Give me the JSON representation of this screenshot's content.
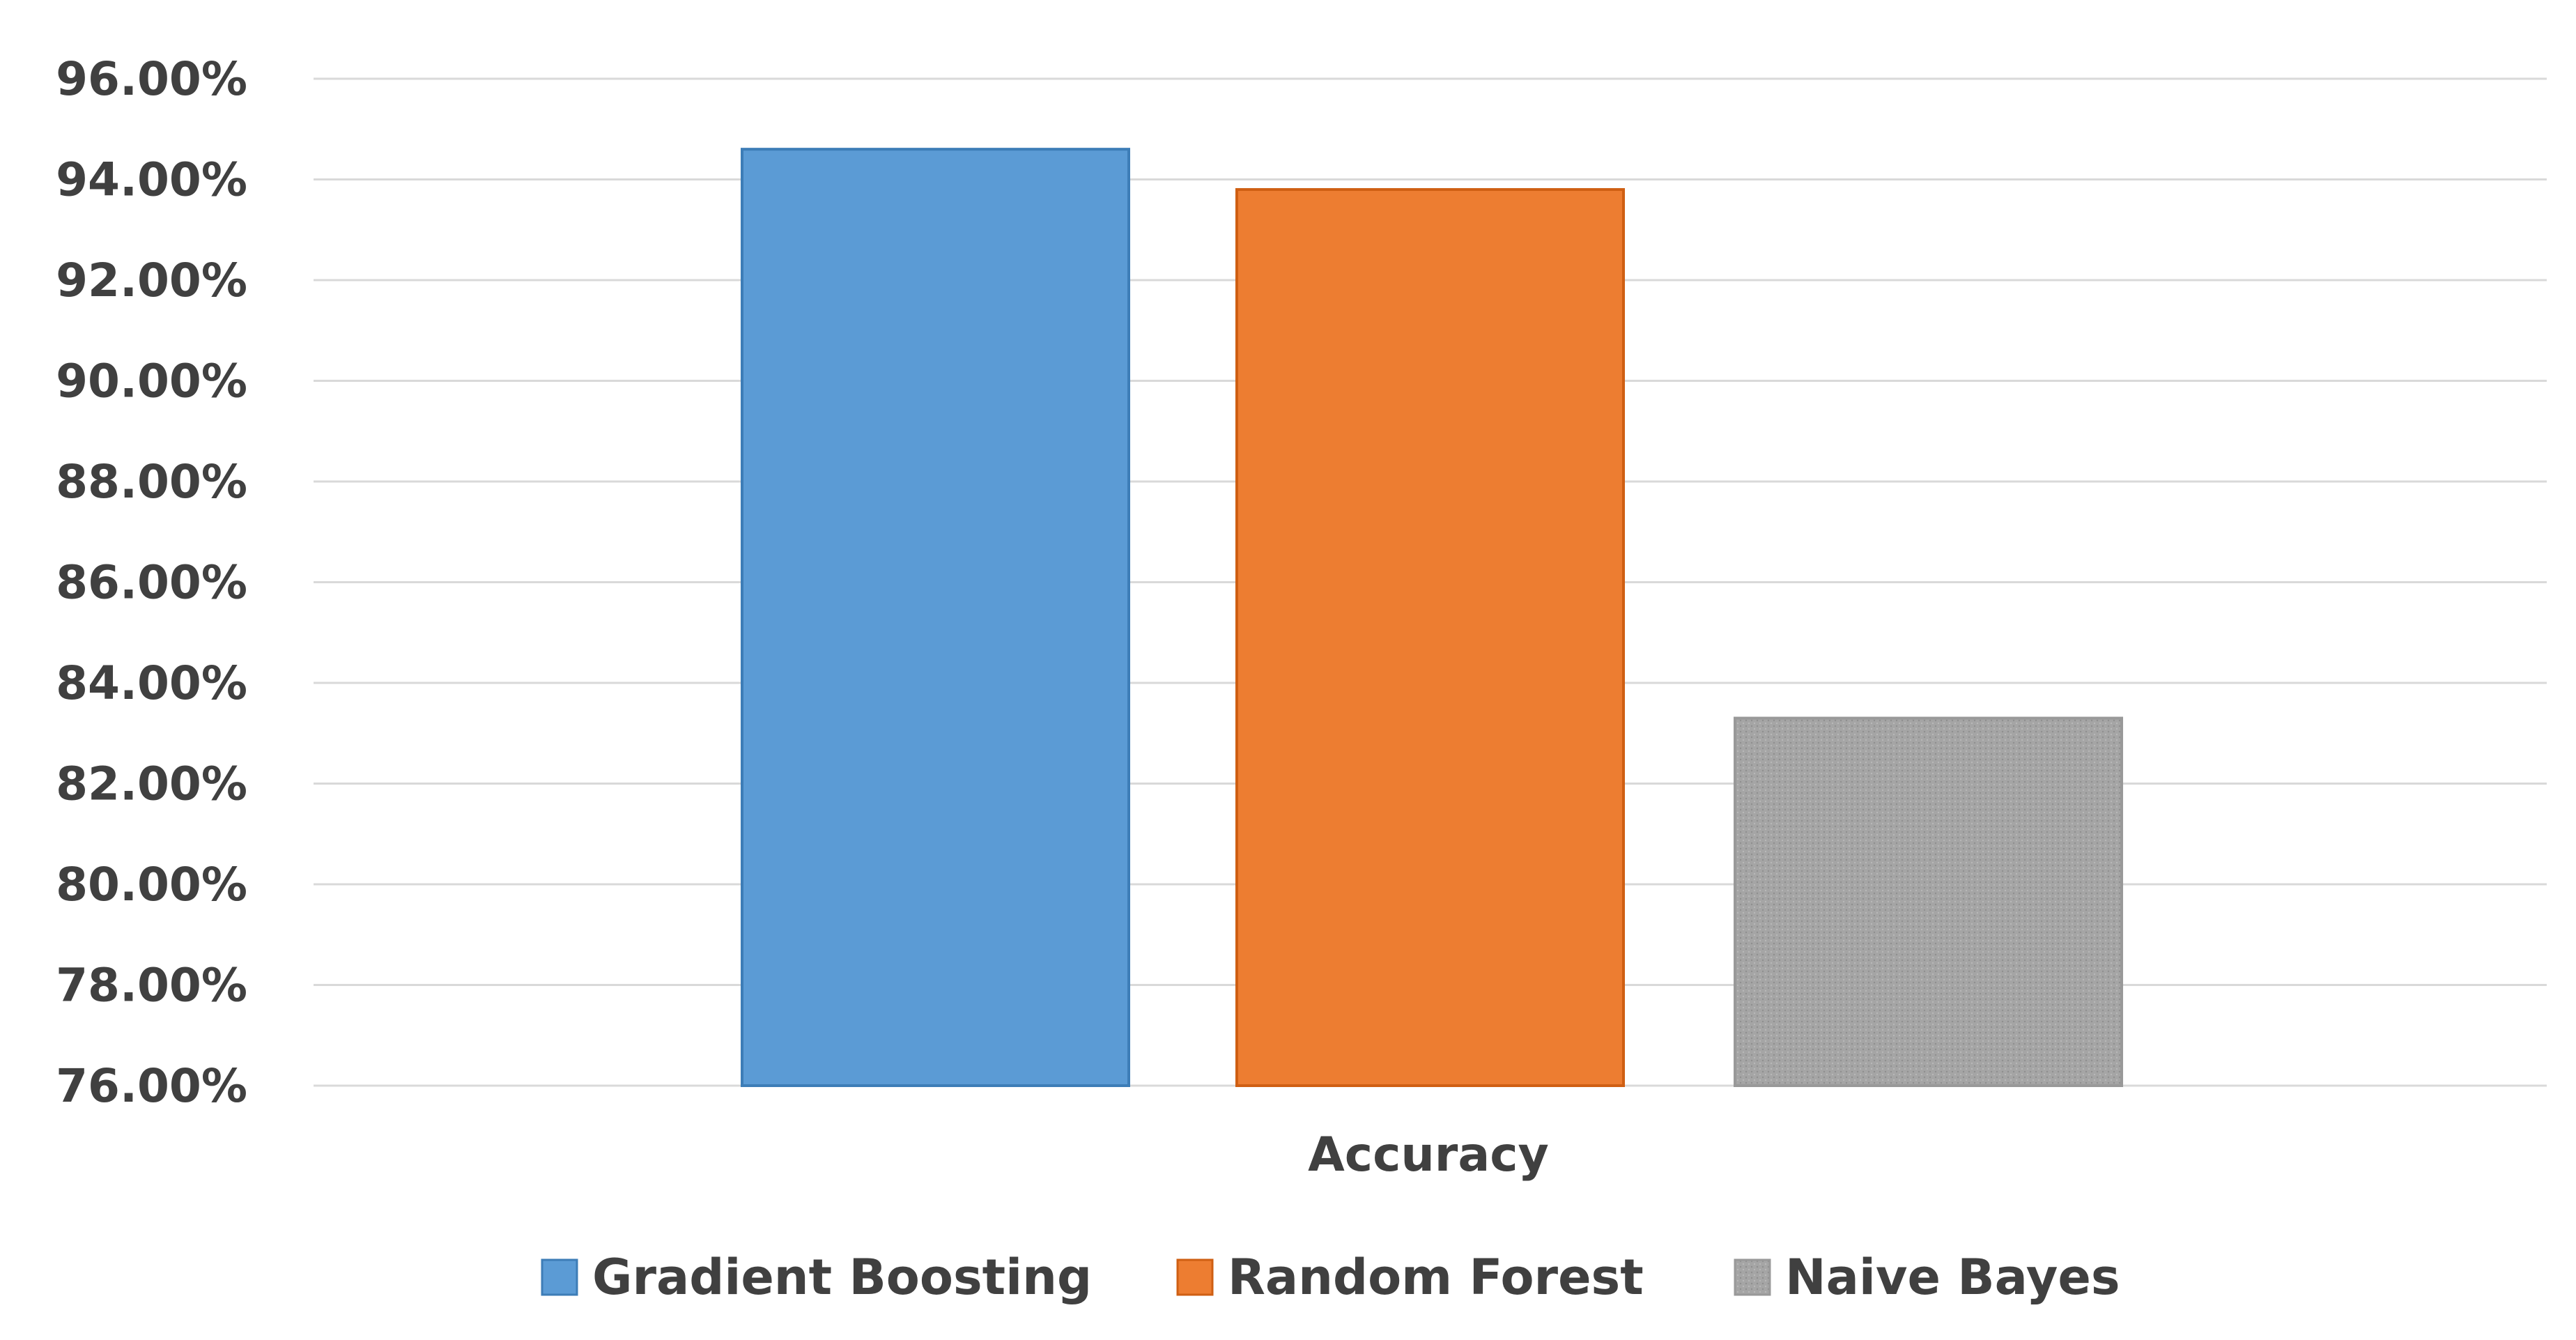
{
  "chart_data": {
    "type": "bar",
    "categories": [
      "Accuracy"
    ],
    "series": [
      {
        "name": "Gradient Boosting",
        "values": [
          94.6
        ],
        "color": "#5B9BD5"
      },
      {
        "name": "Random Forest",
        "values": [
          93.8
        ],
        "color": "#ED7D31"
      },
      {
        "name": "Naive Bayes",
        "values": [
          83.3
        ],
        "color": "#A5A5A5"
      }
    ],
    "title": "",
    "xlabel": "",
    "ylabel": "",
    "ylim": [
      76,
      96
    ],
    "y_ticks": [
      "96.00%",
      "94.00%",
      "92.00%",
      "90.00%",
      "88.00%",
      "86.00%",
      "84.00%",
      "82.00%",
      "80.00%",
      "78.00%",
      "76.00%"
    ],
    "y_tick_values": [
      96,
      94,
      92,
      90,
      88,
      86,
      84,
      82,
      80,
      78,
      76
    ],
    "grid": true,
    "legend_position": "bottom"
  },
  "colors": {
    "grid": "#D9D9D9",
    "text": "#404040",
    "naive_bayes_pattern": "#A5A5A5"
  }
}
